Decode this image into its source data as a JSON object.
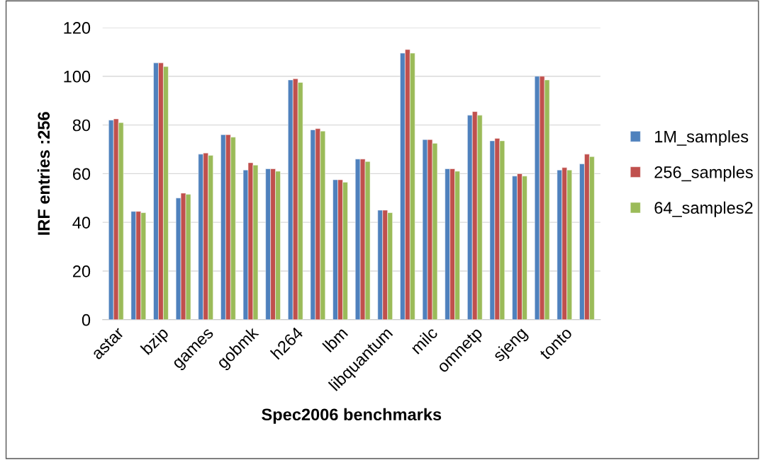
{
  "chart_data": {
    "type": "bar",
    "xlabel": "Spec2006 benchmarks",
    "ylabel": "IRF entries :256",
    "categories": [
      "astar",
      null,
      "bzip",
      null,
      "games",
      null,
      "gobmk",
      null,
      "h264",
      null,
      "lbm",
      null,
      "libquantum",
      null,
      "milc",
      null,
      "omnetp",
      null,
      "sjeng",
      null,
      "tonto",
      null
    ],
    "series": [
      {
        "name": "1M_samples",
        "color": "#4f81bd",
        "values": [
          82,
          44.5,
          105.5,
          50,
          68,
          76,
          61.5,
          62,
          98.5,
          78,
          57.5,
          66,
          45,
          109.5,
          74,
          62,
          84,
          73.5,
          59,
          100,
          61.5,
          64
        ]
      },
      {
        "name": "256_samples",
        "color": "#c0504d",
        "values": [
          82.5,
          44.5,
          105.5,
          52,
          68.5,
          76,
          64.5,
          62,
          99,
          78.5,
          57.5,
          66,
          45,
          111,
          74,
          62,
          85.5,
          74.5,
          60,
          100,
          62.5,
          68
        ]
      },
      {
        "name": "64_samples2",
        "color": "#9bbb59",
        "values": [
          81,
          44,
          104,
          51.5,
          67.5,
          75,
          63.5,
          61,
          97.5,
          77.5,
          56.5,
          65,
          44,
          109.5,
          72.5,
          61,
          84,
          73.5,
          59,
          98.5,
          61.5,
          67
        ]
      }
    ],
    "ylim": [
      0,
      120
    ],
    "yticks": [
      0,
      20,
      40,
      60,
      80,
      100,
      120
    ],
    "grid": "y",
    "legend": "right"
  }
}
